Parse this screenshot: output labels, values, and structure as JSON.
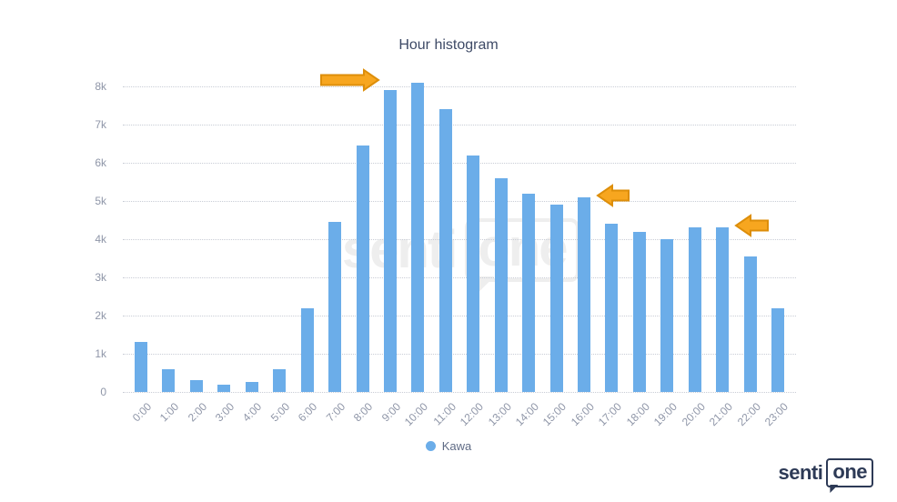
{
  "title": "Hour histogram",
  "legend": {
    "label": "Kawa"
  },
  "watermark": {
    "part1": "senti",
    "part2": "one"
  },
  "logo": {
    "part1": "senti",
    "part2": "one"
  },
  "colors": {
    "bar": "#6bade9",
    "arrow_fill": "#f7a61f",
    "arrow_stroke": "#dd8e0a",
    "title_text": "#3e4a66",
    "axis_text": "#8f96a8",
    "grid_dot": "#c9cdd6",
    "legend_text": "#5f6b85",
    "brand_navy": "#2d3a56",
    "watermark_gray": "#eeeeee"
  },
  "chart_data": {
    "type": "bar",
    "title": "Hour histogram",
    "categories": [
      "0:00",
      "1:00",
      "2:00",
      "3:00",
      "4:00",
      "5:00",
      "6:00",
      "7:00",
      "8:00",
      "9:00",
      "10:00",
      "11:00",
      "12:00",
      "13:00",
      "14:00",
      "15:00",
      "16:00",
      "17:00",
      "18:00",
      "19:00",
      "20:00",
      "21:00",
      "22:00",
      "23:00"
    ],
    "series": [
      {
        "name": "Kawa",
        "color": "#6bade9",
        "values": [
          1300,
          600,
          300,
          200,
          250,
          600,
          2200,
          4450,
          6450,
          7900,
          8100,
          7400,
          6200,
          5600,
          5200,
          4900,
          5100,
          4400,
          4200,
          4000,
          4300,
          4300,
          3550,
          2200
        ]
      }
    ],
    "yticks": [
      "0",
      "1k",
      "2k",
      "3k",
      "4k",
      "5k",
      "6k",
      "7k",
      "8k"
    ],
    "ylim": [
      0,
      8400
    ],
    "xlabel": "",
    "ylabel": "",
    "grid": "horizontal-dotted",
    "legend_position": "bottom",
    "x_label_rotation": -45
  },
  "annotations": [
    {
      "type": "block-arrow",
      "direction": "right",
      "target_category": "9:00",
      "length": 65
    },
    {
      "type": "block-arrow",
      "direction": "left",
      "target_category": "16:00",
      "length": 36
    },
    {
      "type": "block-arrow",
      "direction": "left",
      "target_category": "21:00",
      "length": 37
    }
  ]
}
